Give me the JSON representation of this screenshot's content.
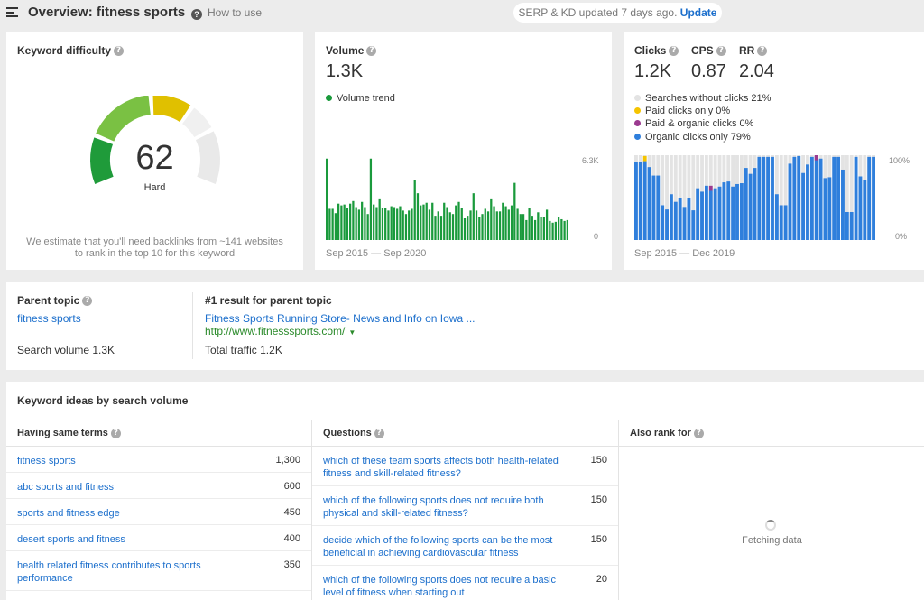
{
  "header": {
    "title": "Overview: fitness sports",
    "how_to": "How to use",
    "serp_text": "SERP & KD updated 7 days ago.",
    "update_label": "Update"
  },
  "kd": {
    "title": "Keyword difficulty",
    "value": "62",
    "rating": "Hard",
    "note_line1": "We estimate that you'll need backlinks from ~141 websites",
    "note_line2": "to rank in the top 10 for this keyword",
    "colors": [
      "#1a9a3c",
      "#7ac143",
      "#e0c000",
      "#f0f0f0",
      "#e9e9e9"
    ]
  },
  "volume": {
    "title": "Volume",
    "value": "1.3K",
    "legend": "Volume trend",
    "legend_color": "#1a9a3c",
    "y_max_label": "6.3K",
    "y_min_label": "0",
    "range": "Sep 2015 — Sep 2020",
    "bar_color": "#1a9a3c",
    "trend": [
      0.94,
      0.36,
      0.36,
      0.31,
      0.42,
      0.4,
      0.41,
      0.37,
      0.42,
      0.45,
      0.38,
      0.35,
      0.44,
      0.38,
      0.3,
      0.94,
      0.41,
      0.38,
      0.47,
      0.37,
      0.37,
      0.34,
      0.39,
      0.38,
      0.36,
      0.39,
      0.34,
      0.3,
      0.34,
      0.36,
      0.69,
      0.54,
      0.4,
      0.41,
      0.43,
      0.35,
      0.43,
      0.28,
      0.33,
      0.28,
      0.43,
      0.38,
      0.32,
      0.3,
      0.4,
      0.44,
      0.37,
      0.25,
      0.28,
      0.34,
      0.54,
      0.34,
      0.27,
      0.3,
      0.36,
      0.33,
      0.47,
      0.39,
      0.33,
      0.33,
      0.43,
      0.39,
      0.35,
      0.4,
      0.66,
      0.36,
      0.3,
      0.3,
      0.23,
      0.37,
      0.28,
      0.23,
      0.32,
      0.27,
      0.27,
      0.35,
      0.22,
      0.2,
      0.21,
      0.27,
      0.24,
      0.22,
      0.23
    ]
  },
  "clicks": {
    "clicks_label": "Clicks",
    "clicks_value": "1.2K",
    "cps_label": "CPS",
    "cps_value": "0.87",
    "rr_label": "RR",
    "rr_value": "2.04",
    "legend": [
      {
        "label": "Searches without clicks 21%",
        "color": "#e3e3e3"
      },
      {
        "label": "Paid clicks only 0%",
        "color": "#f5c400"
      },
      {
        "label": "Paid & organic clicks 0%",
        "color": "#9b3a8f"
      },
      {
        "label": "Organic clicks only 79%",
        "color": "#2f7fdc"
      }
    ],
    "y_max_label": "100%",
    "y_min_label": "0%",
    "range": "Sep 2015 — Dec 2019",
    "organic": [
      0.92,
      0.92,
      0.93,
      0.86,
      0.76,
      0.76,
      0.41,
      0.36,
      0.54,
      0.45,
      0.49,
      0.39,
      0.49,
      0.35,
      0.61,
      0.57,
      0.64,
      0.58,
      0.61,
      0.63,
      0.68,
      0.69,
      0.63,
      0.66,
      0.67,
      0.85,
      0.78,
      0.85,
      0.98,
      0.98,
      0.98,
      0.98,
      0.54,
      0.41,
      0.41,
      0.9,
      0.98,
      0.99,
      0.79,
      0.89,
      0.98,
      0.99,
      0.96,
      0.73,
      0.74,
      0.98,
      0.98,
      0.83,
      0.33,
      0.33,
      0.98,
      0.75,
      0.71,
      0.98,
      0.98
    ],
    "paid_markers": [
      {
        "index": 2,
        "type": "paid",
        "height": 0.06
      },
      {
        "index": 17,
        "type": "paid_organic",
        "height": 0.06
      },
      {
        "index": 41,
        "type": "paid_organic",
        "height": 0.06
      }
    ]
  },
  "parent_topic": {
    "title": "Parent topic",
    "keyword": "fitness sports",
    "search_volume": "Search volume 1.3K",
    "result_title": "#1 result for parent topic",
    "result_link": "Fitness Sports Running Store- News and Info on Iowa ...",
    "result_url": "http://www.fitnesssports.com/",
    "total_traffic": "Total traffic 1.2K"
  },
  "ideas": {
    "title": "Keyword ideas by search volume",
    "columns": [
      {
        "header": "Having same terms",
        "rows": [
          {
            "kw": "fitness sports",
            "vol": "1,300"
          },
          {
            "kw": "abc sports and fitness",
            "vol": "600"
          },
          {
            "kw": "sports and fitness edge",
            "vol": "450"
          },
          {
            "kw": "desert sports and fitness",
            "vol": "400"
          },
          {
            "kw": "health related fitness contributes to sports performance",
            "vol": "350"
          }
        ]
      },
      {
        "header": "Questions",
        "rows": [
          {
            "kw": "which of these team sports affects both health-related fitness and skill-related fitness?",
            "vol": "150"
          },
          {
            "kw": "which of the following sports does not require both physical and skill-related fitness?",
            "vol": "150"
          },
          {
            "kw": "decide which of the following sports can be the most beneficial in achieving cardiovascular fitness",
            "vol": "150"
          },
          {
            "kw": "which of the following sports does not require a basic level of fitness when starting out",
            "vol": "20"
          }
        ]
      },
      {
        "header": "Also rank for",
        "fetching": "Fetching data"
      }
    ]
  }
}
